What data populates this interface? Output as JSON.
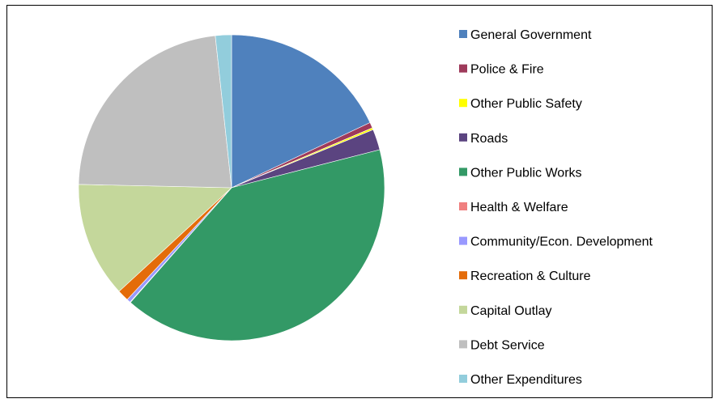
{
  "chart_data": {
    "type": "pie",
    "title": "",
    "start_angle_deg": 0,
    "direction": "clockwise",
    "legend_position": "right",
    "slices": [
      {
        "label": "General Government",
        "value": 18.0,
        "color": "#4F81BD"
      },
      {
        "label": "Police & Fire",
        "value": 0.6,
        "color": "#9E3A5B"
      },
      {
        "label": "Other Public Safety",
        "value": 0.2,
        "color": "#FFFF00"
      },
      {
        "label": "Roads",
        "value": 2.2,
        "color": "#5B4480"
      },
      {
        "label": "Other Public Works",
        "value": 40.5,
        "color": "#339966"
      },
      {
        "label": "Health & Welfare",
        "value": 0.05,
        "color": "#F08080"
      },
      {
        "label": "Community/Econ. Development",
        "value": 0.4,
        "color": "#9999FF"
      },
      {
        "label": "Recreation & Culture",
        "value": 1.2,
        "color": "#E46C0A"
      },
      {
        "label": "Capital Outlay",
        "value": 12.2,
        "color": "#C4D79B"
      },
      {
        "label": "Debt Service",
        "value": 22.95,
        "color": "#BFBFBF"
      },
      {
        "label": "Other Expenditures",
        "value": 1.7,
        "color": "#92CDDC"
      }
    ]
  }
}
